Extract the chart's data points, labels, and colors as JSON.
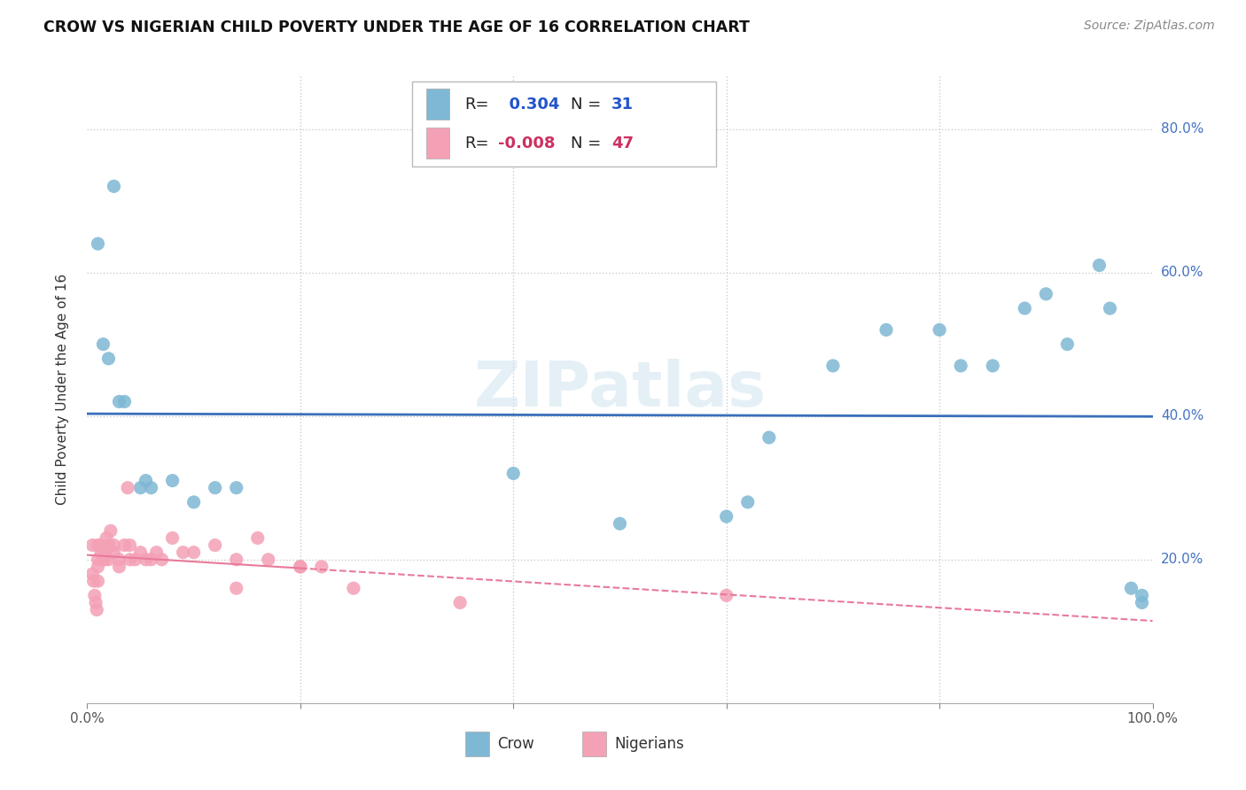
{
  "title": "CROW VS NIGERIAN CHILD POVERTY UNDER THE AGE OF 16 CORRELATION CHART",
  "source": "Source: ZipAtlas.com",
  "ylabel": "Child Poverty Under the Age of 16",
  "xlim": [
    0,
    1.0
  ],
  "ylim": [
    0,
    0.875
  ],
  "xticks": [
    0.0,
    0.2,
    0.4,
    0.6,
    0.8,
    1.0
  ],
  "xticklabels": [
    "0.0%",
    "",
    "",
    "",
    "",
    "100.0%"
  ],
  "yticks": [
    0.2,
    0.4,
    0.6,
    0.8
  ],
  "yticklabels": [
    "20.0%",
    "40.0%",
    "60.0%",
    "80.0%"
  ],
  "crow_color": "#7eb8d4",
  "nigerian_color": "#f4a0b5",
  "crow_line_color": "#3a6fba",
  "nigerian_line_color": "#e87a9a",
  "background_color": "#ffffff",
  "legend_r_crow": "0.304",
  "legend_n_crow": "31",
  "legend_r_nigerian": "-0.008",
  "legend_n_nigerian": "47",
  "crow_x": [
    0.015,
    0.02,
    0.025,
    0.01,
    0.03,
    0.035,
    0.05,
    0.055,
    0.06,
    0.08,
    0.1,
    0.12,
    0.14,
    0.4,
    0.62,
    0.64,
    0.7,
    0.75,
    0.8,
    0.82,
    0.85,
    0.88,
    0.9,
    0.92,
    0.95,
    0.96,
    0.98,
    0.99,
    0.99,
    0.6,
    0.5
  ],
  "crow_y": [
    0.5,
    0.48,
    0.72,
    0.64,
    0.42,
    0.42,
    0.3,
    0.31,
    0.3,
    0.31,
    0.28,
    0.3,
    0.3,
    0.32,
    0.28,
    0.37,
    0.47,
    0.52,
    0.52,
    0.47,
    0.47,
    0.55,
    0.57,
    0.5,
    0.61,
    0.55,
    0.16,
    0.15,
    0.14,
    0.26,
    0.25
  ],
  "nig_x": [
    0.005,
    0.005,
    0.006,
    0.007,
    0.008,
    0.009,
    0.01,
    0.01,
    0.01,
    0.01,
    0.012,
    0.013,
    0.015,
    0.016,
    0.017,
    0.018,
    0.02,
    0.02,
    0.022,
    0.025,
    0.025,
    0.03,
    0.03,
    0.035,
    0.038,
    0.04,
    0.04,
    0.045,
    0.05,
    0.055,
    0.06,
    0.065,
    0.07,
    0.08,
    0.09,
    0.1,
    0.12,
    0.14,
    0.16,
    0.17,
    0.2,
    0.22,
    0.14,
    0.2,
    0.25,
    0.35,
    0.6
  ],
  "nig_y": [
    0.22,
    0.18,
    0.17,
    0.15,
    0.14,
    0.13,
    0.2,
    0.22,
    0.19,
    0.17,
    0.22,
    0.21,
    0.2,
    0.2,
    0.21,
    0.23,
    0.22,
    0.2,
    0.24,
    0.21,
    0.22,
    0.2,
    0.19,
    0.22,
    0.3,
    0.22,
    0.2,
    0.2,
    0.21,
    0.2,
    0.2,
    0.21,
    0.2,
    0.23,
    0.21,
    0.21,
    0.22,
    0.2,
    0.23,
    0.2,
    0.19,
    0.19,
    0.16,
    0.19,
    0.16,
    0.14,
    0.15
  ]
}
